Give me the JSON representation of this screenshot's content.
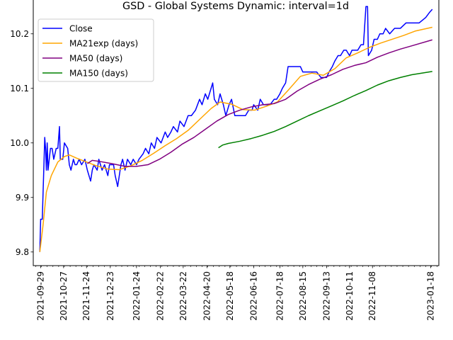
{
  "chart_data": {
    "type": "line",
    "title": "GSD - Global Systems Dynamic: interval=1d",
    "xlabel": "",
    "ylabel": "",
    "x_range": [
      "2021-09-20",
      "2023-01-28"
    ],
    "ylim": [
      9.775,
      10.275
    ],
    "yticks": [
      9.8,
      9.9,
      10.0,
      10.1,
      10.2
    ],
    "ytick_labels": [
      "9.8",
      "9.9",
      "10.0",
      "10.1",
      "10.2"
    ],
    "xticks": [
      "2021-09-29",
      "2021-10-27",
      "2021-11-24",
      "2021-12-23",
      "2022-01-24",
      "2022-02-22",
      "2022-03-22",
      "2022-04-20",
      "2022-05-18",
      "2022-06-16",
      "2022-07-18",
      "2022-08-15",
      "2022-09-13",
      "2022-10-11",
      "2022-11-08",
      "2023-01-18"
    ],
    "grid": false,
    "legend_position": "top-left",
    "series": [
      {
        "name": "Close",
        "color": "#0000ff",
        "points": [
          [
            "2021-09-28",
            9.8
          ],
          [
            "2021-09-29",
            9.86
          ],
          [
            "2021-10-01",
            9.86
          ],
          [
            "2021-10-04",
            10.01
          ],
          [
            "2021-10-05",
            9.99
          ],
          [
            "2021-10-06",
            9.95
          ],
          [
            "2021-10-07",
            10.0
          ],
          [
            "2021-10-08",
            9.95
          ],
          [
            "2021-10-11",
            9.99
          ],
          [
            "2021-10-13",
            9.99
          ],
          [
            "2021-10-15",
            9.97
          ],
          [
            "2021-10-18",
            9.99
          ],
          [
            "2021-10-20",
            9.99
          ],
          [
            "2021-10-22",
            10.03
          ],
          [
            "2021-10-23",
            9.97
          ],
          [
            "2021-10-26",
            9.97
          ],
          [
            "2021-10-28",
            10.0
          ],
          [
            "2021-11-01",
            9.99
          ],
          [
            "2021-11-03",
            9.96
          ],
          [
            "2021-11-05",
            9.95
          ],
          [
            "2021-11-08",
            9.97
          ],
          [
            "2021-11-10",
            9.96
          ],
          [
            "2021-11-12",
            9.96
          ],
          [
            "2021-11-15",
            9.97
          ],
          [
            "2021-11-18",
            9.96
          ],
          [
            "2021-11-22",
            9.97
          ],
          [
            "2021-11-25",
            9.95
          ],
          [
            "2021-11-29",
            9.93
          ],
          [
            "2021-12-01",
            9.95
          ],
          [
            "2021-12-03",
            9.96
          ],
          [
            "2021-12-07",
            9.95
          ],
          [
            "2021-12-09",
            9.97
          ],
          [
            "2021-12-13",
            9.95
          ],
          [
            "2021-12-16",
            9.96
          ],
          [
            "2021-12-20",
            9.94
          ],
          [
            "2021-12-22",
            9.96
          ],
          [
            "2021-12-27",
            9.96
          ],
          [
            "2021-12-29",
            9.94
          ],
          [
            "2022-01-01",
            9.92
          ],
          [
            "2022-01-05",
            9.96
          ],
          [
            "2022-01-07",
            9.97
          ],
          [
            "2022-01-10",
            9.95
          ],
          [
            "2022-01-13",
            9.97
          ],
          [
            "2022-01-17",
            9.96
          ],
          [
            "2022-01-20",
            9.97
          ],
          [
            "2022-01-24",
            9.96
          ],
          [
            "2022-01-27",
            9.97
          ],
          [
            "2022-02-01",
            9.98
          ],
          [
            "2022-02-04",
            9.99
          ],
          [
            "2022-02-08",
            9.98
          ],
          [
            "2022-02-11",
            10.0
          ],
          [
            "2022-02-15",
            9.99
          ],
          [
            "2022-02-18",
            10.01
          ],
          [
            "2022-02-23",
            10.0
          ],
          [
            "2022-02-28",
            10.02
          ],
          [
            "2022-03-03",
            10.01
          ],
          [
            "2022-03-07",
            10.02
          ],
          [
            "2022-03-10",
            10.03
          ],
          [
            "2022-03-15",
            10.02
          ],
          [
            "2022-03-18",
            10.04
          ],
          [
            "2022-03-23",
            10.03
          ],
          [
            "2022-03-28",
            10.05
          ],
          [
            "2022-04-01",
            10.05
          ],
          [
            "2022-04-06",
            10.06
          ],
          [
            "2022-04-11",
            10.08
          ],
          [
            "2022-04-14",
            10.07
          ],
          [
            "2022-04-18",
            10.09
          ],
          [
            "2022-04-21",
            10.08
          ],
          [
            "2022-04-25",
            10.1
          ],
          [
            "2022-04-27",
            10.11
          ],
          [
            "2022-04-29",
            10.08
          ],
          [
            "2022-05-03",
            10.07
          ],
          [
            "2022-05-06",
            10.09
          ],
          [
            "2022-05-10",
            10.07
          ],
          [
            "2022-05-13",
            10.05
          ],
          [
            "2022-05-17",
            10.07
          ],
          [
            "2022-05-20",
            10.08
          ],
          [
            "2022-05-24",
            10.05
          ],
          [
            "2022-05-27",
            10.05
          ],
          [
            "2022-06-01",
            10.05
          ],
          [
            "2022-06-06",
            10.05
          ],
          [
            "2022-06-10",
            10.06
          ],
          [
            "2022-06-14",
            10.06
          ],
          [
            "2022-06-16",
            10.07
          ],
          [
            "2022-06-21",
            10.06
          ],
          [
            "2022-06-24",
            10.08
          ],
          [
            "2022-06-28",
            10.07
          ],
          [
            "2022-07-01",
            10.07
          ],
          [
            "2022-07-06",
            10.07
          ],
          [
            "2022-07-11",
            10.08
          ],
          [
            "2022-07-14",
            10.08
          ],
          [
            "2022-07-18",
            10.09
          ],
          [
            "2022-07-21",
            10.1
          ],
          [
            "2022-07-25",
            10.11
          ],
          [
            "2022-07-28",
            10.14
          ],
          [
            "2022-08-02",
            10.14
          ],
          [
            "2022-08-08",
            10.14
          ],
          [
            "2022-08-12",
            10.14
          ],
          [
            "2022-08-15",
            10.13
          ],
          [
            "2022-08-22",
            10.13
          ],
          [
            "2022-08-29",
            10.13
          ],
          [
            "2022-09-01",
            10.13
          ],
          [
            "2022-09-06",
            10.12
          ],
          [
            "2022-09-13",
            10.12
          ],
          [
            "2022-09-16",
            10.13
          ],
          [
            "2022-09-20",
            10.14
          ],
          [
            "2022-09-23",
            10.15
          ],
          [
            "2022-09-27",
            10.16
          ],
          [
            "2022-09-30",
            10.16
          ],
          [
            "2022-10-04",
            10.17
          ],
          [
            "2022-10-07",
            10.17
          ],
          [
            "2022-10-11",
            10.16
          ],
          [
            "2022-10-14",
            10.17
          ],
          [
            "2022-10-18",
            10.17
          ],
          [
            "2022-10-21",
            10.17
          ],
          [
            "2022-10-25",
            10.18
          ],
          [
            "2022-10-28",
            10.18
          ],
          [
            "2022-10-31",
            10.25
          ],
          [
            "2022-11-02",
            10.25
          ],
          [
            "2022-11-03",
            10.16
          ],
          [
            "2022-11-07",
            10.17
          ],
          [
            "2022-11-10",
            10.19
          ],
          [
            "2022-11-14",
            10.19
          ],
          [
            "2022-11-17",
            10.2
          ],
          [
            "2022-11-21",
            10.2
          ],
          [
            "2022-11-24",
            10.21
          ],
          [
            "2022-11-29",
            10.2
          ],
          [
            "2022-12-05",
            10.21
          ],
          [
            "2022-12-12",
            10.21
          ],
          [
            "2022-12-19",
            10.22
          ],
          [
            "2022-12-27",
            10.22
          ],
          [
            "2023-01-04",
            10.22
          ],
          [
            "2023-01-12",
            10.23
          ],
          [
            "2023-01-17",
            10.24
          ],
          [
            "2023-01-20",
            10.245
          ]
        ]
      },
      {
        "name": "MA21exp (days)",
        "color": "#ffa500",
        "points": [
          [
            "2021-09-28",
            9.8
          ],
          [
            "2021-10-02",
            9.85
          ],
          [
            "2021-10-06",
            9.91
          ],
          [
            "2021-10-12",
            9.94
          ],
          [
            "2021-10-20",
            9.965
          ],
          [
            "2021-10-28",
            9.975
          ],
          [
            "2021-11-03",
            9.978
          ],
          [
            "2021-11-12",
            9.972
          ],
          [
            "2021-11-24",
            9.965
          ],
          [
            "2021-12-06",
            9.958
          ],
          [
            "2021-12-20",
            9.952
          ],
          [
            "2022-01-03",
            9.951
          ],
          [
            "2022-01-17",
            9.958
          ],
          [
            "2022-01-31",
            9.968
          ],
          [
            "2022-02-14",
            9.981
          ],
          [
            "2022-02-28",
            9.995
          ],
          [
            "2022-03-14",
            10.008
          ],
          [
            "2022-03-28",
            10.023
          ],
          [
            "2022-04-11",
            10.043
          ],
          [
            "2022-04-25",
            10.063
          ],
          [
            "2022-05-06",
            10.075
          ],
          [
            "2022-05-20",
            10.071
          ],
          [
            "2022-06-03",
            10.061
          ],
          [
            "2022-06-17",
            10.06
          ],
          [
            "2022-07-01",
            10.067
          ],
          [
            "2022-07-15",
            10.075
          ],
          [
            "2022-07-29",
            10.098
          ],
          [
            "2022-08-12",
            10.122
          ],
          [
            "2022-08-26",
            10.128
          ],
          [
            "2022-09-09",
            10.124
          ],
          [
            "2022-09-23",
            10.136
          ],
          [
            "2022-10-07",
            10.156
          ],
          [
            "2022-10-21",
            10.165
          ],
          [
            "2022-11-04",
            10.175
          ],
          [
            "2022-11-18",
            10.183
          ],
          [
            "2022-12-02",
            10.19
          ],
          [
            "2022-12-16",
            10.197
          ],
          [
            "2022-12-30",
            10.205
          ],
          [
            "2023-01-20",
            10.212
          ]
        ]
      },
      {
        "name": "MA50 (days)",
        "color": "#800080",
        "points": [
          [
            "2021-11-25",
            9.962
          ],
          [
            "2021-12-01",
            9.968
          ],
          [
            "2021-12-10",
            9.966
          ],
          [
            "2021-12-25",
            9.962
          ],
          [
            "2022-01-10",
            9.957
          ],
          [
            "2022-01-24",
            9.957
          ],
          [
            "2022-02-07",
            9.96
          ],
          [
            "2022-02-21",
            9.97
          ],
          [
            "2022-03-07",
            9.983
          ],
          [
            "2022-03-21",
            9.998
          ],
          [
            "2022-04-04",
            10.01
          ],
          [
            "2022-04-18",
            10.025
          ],
          [
            "2022-05-02",
            10.04
          ],
          [
            "2022-05-16",
            10.052
          ],
          [
            "2022-05-30",
            10.06
          ],
          [
            "2022-06-13",
            10.066
          ],
          [
            "2022-06-27",
            10.07
          ],
          [
            "2022-07-11",
            10.072
          ],
          [
            "2022-07-25",
            10.08
          ],
          [
            "2022-08-08",
            10.095
          ],
          [
            "2022-08-22",
            10.107
          ],
          [
            "2022-09-05",
            10.117
          ],
          [
            "2022-09-19",
            10.125
          ],
          [
            "2022-10-03",
            10.135
          ],
          [
            "2022-10-17",
            10.142
          ],
          [
            "2022-10-31",
            10.147
          ],
          [
            "2022-11-14",
            10.157
          ],
          [
            "2022-11-28",
            10.165
          ],
          [
            "2022-12-12",
            10.172
          ],
          [
            "2022-12-26",
            10.178
          ],
          [
            "2023-01-20",
            10.189
          ]
        ]
      },
      {
        "name": "MA150 (days)",
        "color": "#008000",
        "points": [
          [
            "2022-05-04",
            9.991
          ],
          [
            "2022-05-09",
            9.996
          ],
          [
            "2022-05-16",
            9.999
          ],
          [
            "2022-05-30",
            10.003
          ],
          [
            "2022-06-13",
            10.008
          ],
          [
            "2022-06-27",
            10.014
          ],
          [
            "2022-07-11",
            10.021
          ],
          [
            "2022-07-25",
            10.03
          ],
          [
            "2022-08-08",
            10.04
          ],
          [
            "2022-08-22",
            10.05
          ],
          [
            "2022-09-05",
            10.059
          ],
          [
            "2022-09-19",
            10.068
          ],
          [
            "2022-10-03",
            10.077
          ],
          [
            "2022-10-17",
            10.087
          ],
          [
            "2022-10-31",
            10.096
          ],
          [
            "2022-11-14",
            10.106
          ],
          [
            "2022-11-28",
            10.114
          ],
          [
            "2022-12-12",
            10.12
          ],
          [
            "2022-12-26",
            10.125
          ],
          [
            "2023-01-20",
            10.131
          ]
        ]
      }
    ]
  }
}
